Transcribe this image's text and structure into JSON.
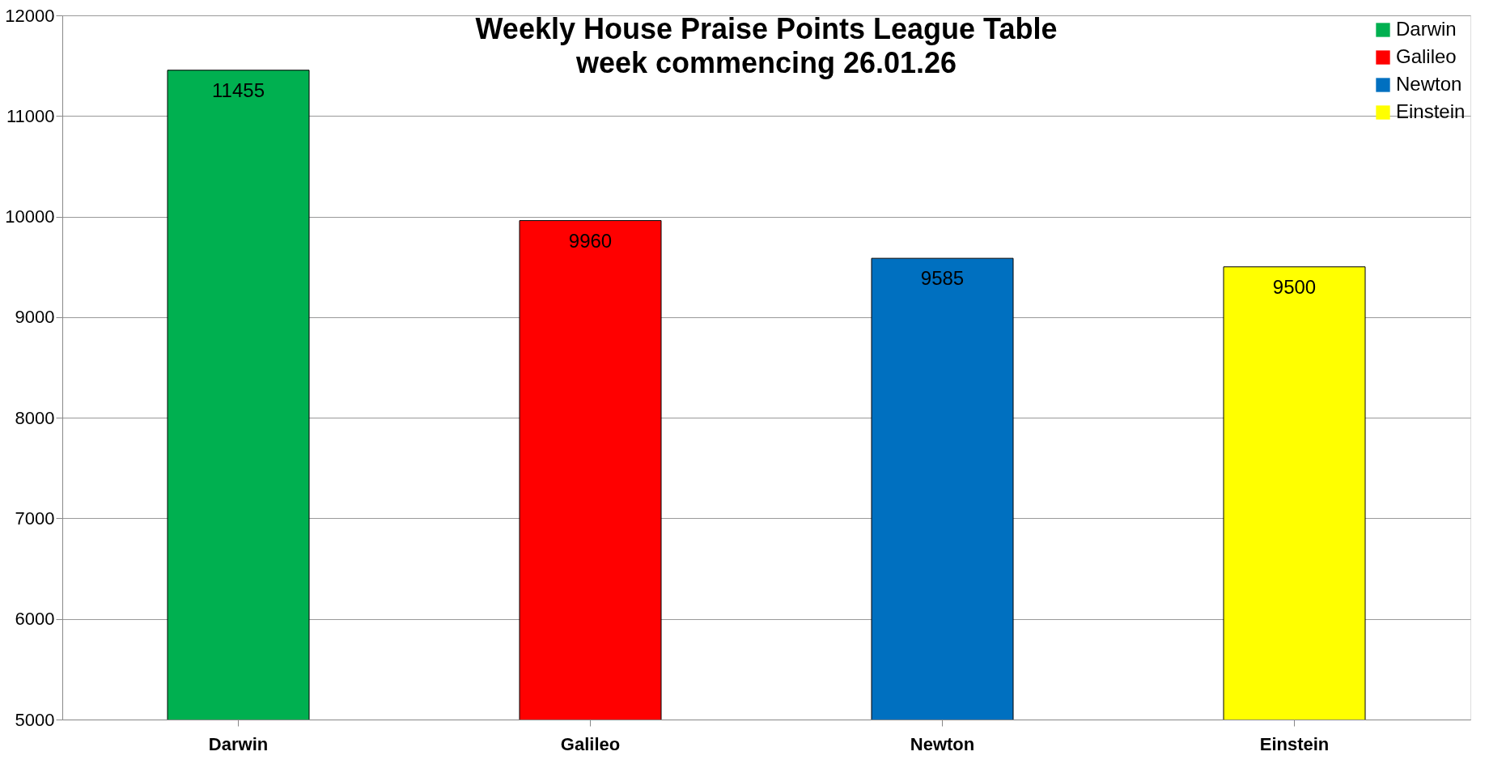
{
  "chart_data": {
    "type": "bar",
    "title": "Weekly House Praise Points League Table",
    "subtitle": "week commencing  26.01.26",
    "categories": [
      "Darwin",
      "Galileo",
      "Newton",
      "Einstein"
    ],
    "series": [
      {
        "name": "Darwin",
        "color": "#00b050",
        "values": [
          11455,
          null,
          null,
          null
        ]
      },
      {
        "name": "Galileo",
        "color": "#ff0000",
        "values": [
          null,
          9960,
          null,
          null
        ]
      },
      {
        "name": "Newton",
        "color": "#0070c0",
        "values": [
          null,
          null,
          9585,
          null
        ]
      },
      {
        "name": "Einstein",
        "color": "#ffff00",
        "values": [
          null,
          null,
          null,
          9500
        ]
      }
    ],
    "ylim": [
      5000,
      12000
    ],
    "yticks": [
      5000,
      6000,
      7000,
      8000,
      9000,
      10000,
      11000,
      12000
    ],
    "grid": "y",
    "legend": "top right",
    "data_labels": true
  }
}
